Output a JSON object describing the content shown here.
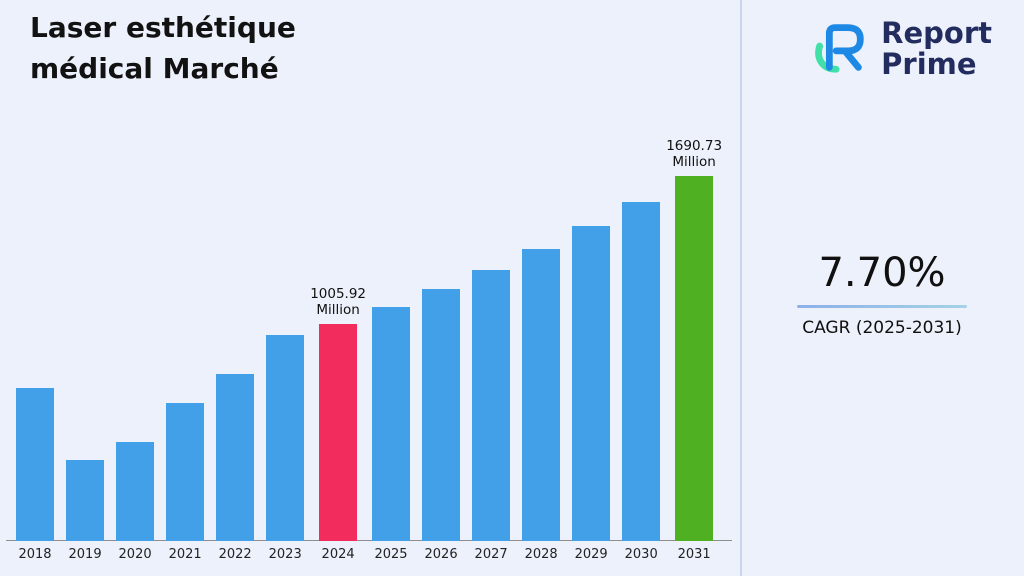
{
  "title": "Laser esthétique\nmédical Marché",
  "logo": {
    "line1": "Report",
    "line2": "Prime"
  },
  "stats": {
    "cagr_value": "7.70%",
    "cagr_label": "CAGR (2025-2031)"
  },
  "chart_data": {
    "type": "bar",
    "title": "Laser esthétique médical Marché",
    "unit": "Million",
    "categories": [
      "2018",
      "2019",
      "2020",
      "2021",
      "2022",
      "2023",
      "2024",
      "2025",
      "2026",
      "2027",
      "2028",
      "2029",
      "2030",
      "2031"
    ],
    "values": [
      710,
      375,
      460,
      640,
      775,
      955,
      1005.92,
      1083.37,
      1166.79,
      1256.63,
      1353.39,
      1457.6,
      1569.83,
      1690.73
    ],
    "labeled_values": {
      "2024": "1005.92 Million",
      "2031": "1690.73 Million"
    },
    "annotations": [
      {
        "category": "2024",
        "text": "1005.92\nMillion"
      },
      {
        "category": "2031",
        "text": "1690.73\nMillion"
      }
    ],
    "bar_color": "#42a0e8",
    "highlight_colors": {
      "2024": "#f22d5e",
      "2031": "#4fb122"
    },
    "background_color": "#edf1fb",
    "ylim": [
      0,
      1800
    ],
    "grid": false,
    "legend": "none",
    "x_axis_line": true
  }
}
